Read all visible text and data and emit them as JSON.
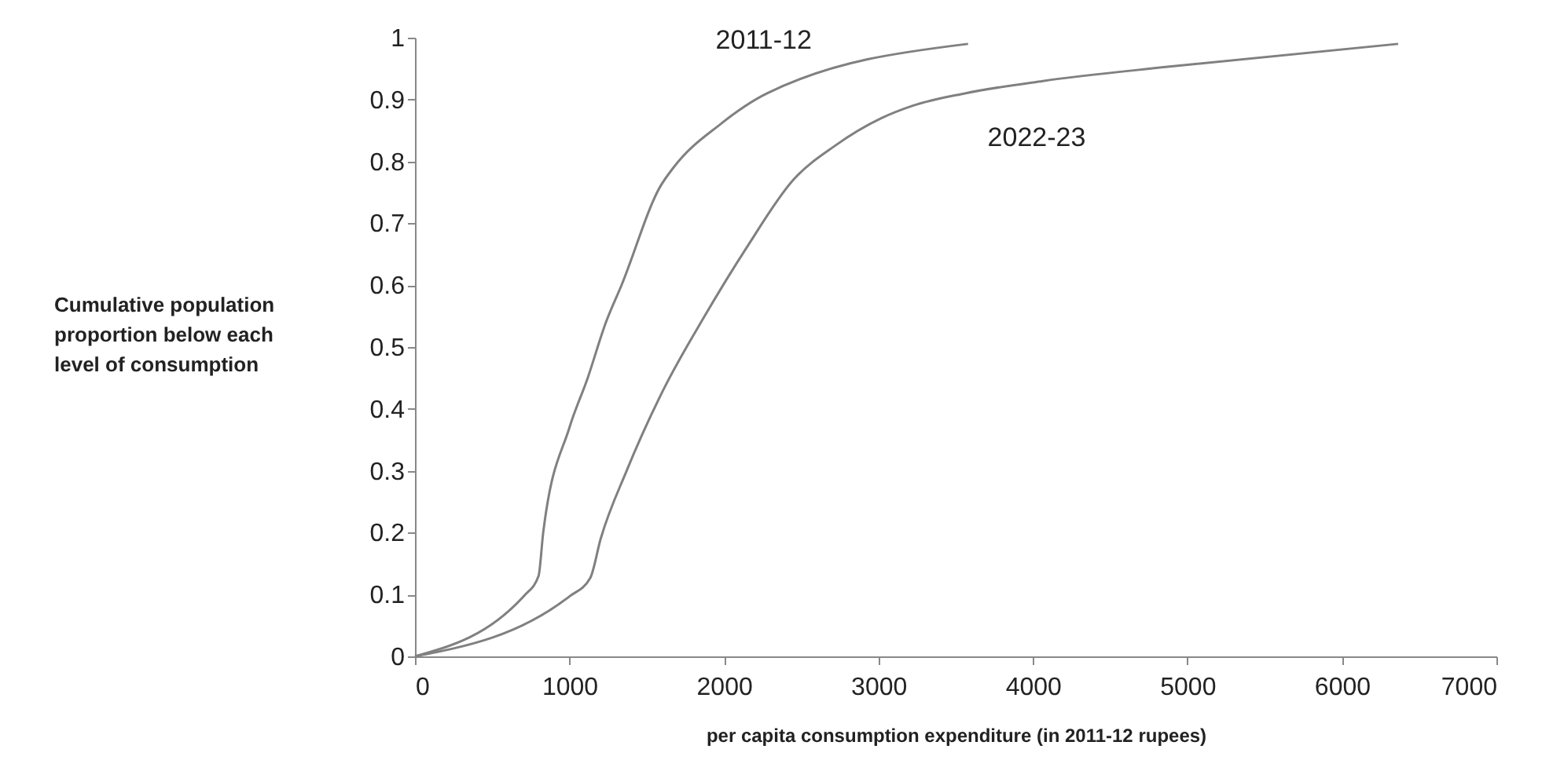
{
  "chart_data": {
    "type": "line",
    "xlabel": "per capita consumption expenditure (in 2011-12 rupees)",
    "ylabel": "Cumulative population proportion below each level of consumption",
    "xlim": [
      0,
      7000
    ],
    "xticks": [
      0,
      1000,
      2000,
      3000,
      4000,
      5000,
      6000,
      7000
    ],
    "ylim": [
      0,
      1
    ],
    "yticks": [
      0,
      0.1,
      0.2,
      0.3,
      0.4,
      0.5,
      0.6,
      0.7,
      0.8,
      0.9,
      1
    ],
    "grid": false,
    "legend": false,
    "marker": "none",
    "line_style": "solid",
    "series": [
      {
        "name": "2011-12",
        "color": "#808080",
        "x": [
          0,
          714,
          800,
          830,
          1000,
          1118,
          1236,
          1337,
          1589,
          1673,
          1976,
          2279,
          3580
        ],
        "values": [
          0,
          0.1,
          0.13,
          0.2,
          0.37,
          0.45,
          0.54,
          0.6,
          0.76,
          0.79,
          0.86,
          0.91,
          0.99
        ]
      },
      {
        "name": "2022-23",
        "color": "#808080",
        "x": [
          0,
          1000,
          1135,
          1202,
          1370,
          1606,
          1875,
          2145,
          2448,
          2717,
          3020,
          3222,
          3559,
          4064,
          4873,
          6364
        ],
        "values": [
          0,
          0.097,
          0.127,
          0.19,
          0.3,
          0.43,
          0.55,
          0.66,
          0.77,
          0.825,
          0.87,
          0.89,
          0.91,
          0.93,
          0.953,
          0.99
        ]
      }
    ]
  }
}
